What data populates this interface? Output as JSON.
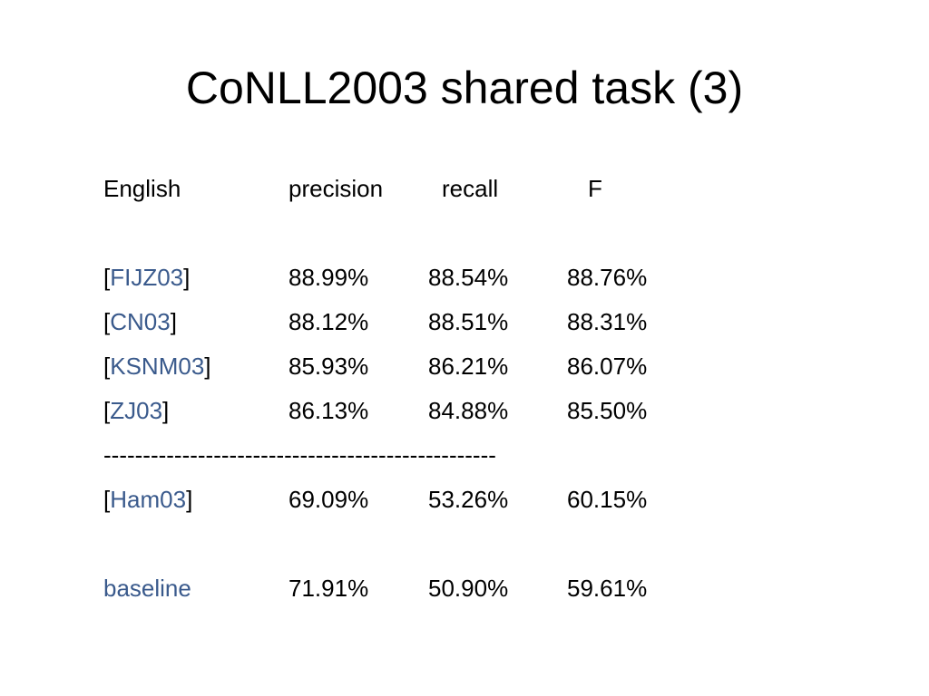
{
  "slide": {
    "title": "CoNLL2003 shared task (3)"
  },
  "table": {
    "header": {
      "language": "English",
      "precision": "precision",
      "recall": "recall",
      "f": "F"
    },
    "rows": [
      {
        "open": "[",
        "system": "FIJZ03",
        "close": "]",
        "precision": "88.99%",
        "recall": "88.54%",
        "f": "88.76%"
      },
      {
        "open": "[",
        "system": "CN03",
        "close": "]",
        "precision": "88.12%",
        "recall": "88.51%",
        "f": "88.31%"
      },
      {
        "open": "[",
        "system": "KSNM03",
        "close": "]",
        "precision": "85.93%",
        "recall": "86.21%",
        "f": "86.07%"
      },
      {
        "open": "[",
        "system": "ZJ03",
        "close": "]",
        "precision": "86.13%",
        "recall": "84.88%",
        "f": "85.50%"
      }
    ],
    "divider": "--------------------------------------------------",
    "ham": {
      "open": "[",
      "system": "Ham03",
      "close": "]",
      "precision": "69.09%",
      "recall": "53.26%",
      "f": "60.15%"
    },
    "baseline": {
      "system": "baseline",
      "precision": "71.91%",
      "recall": "50.90%",
      "f": "59.61%"
    }
  }
}
